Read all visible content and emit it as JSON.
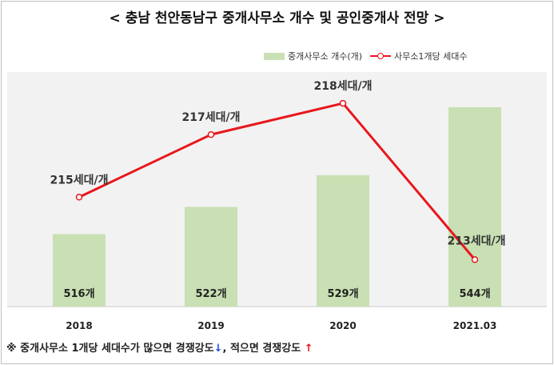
{
  "title": "< 충남 천안동남구 중개사무소 개수 및 공인중개사 전망 >",
  "legend": {
    "bar_label": "중개사무소 개수(개)",
    "line_label": "사무소1개당 세대수"
  },
  "footnote": {
    "text_part1": "※ 중개사무소 1개당 세대수가 많으면 경쟁강도",
    "arrow1": "↓",
    "text_part2": ", 적으면 경쟁강도 ",
    "arrow2": "↑"
  },
  "colors": {
    "bar": "#c9e0b4",
    "line": "#e8171c",
    "plot_bg": "#f2f2f2"
  },
  "chart_data": {
    "type": "bar",
    "categories": [
      "2018",
      "2019",
      "2020",
      "2021.03"
    ],
    "series": [
      {
        "name": "중개사무소 개수(개)",
        "type": "bar",
        "values": [
          516,
          522,
          529,
          544
        ],
        "data_labels": [
          "516개",
          "522개",
          "529개",
          "544개"
        ]
      },
      {
        "name": "사무소1개당 세대수",
        "type": "line",
        "values": [
          215,
          217,
          218,
          213
        ],
        "data_labels": [
          "215세대/개",
          "217세대/개",
          "218세대/개",
          "213세대/개"
        ]
      }
    ],
    "bar_axis_range": [
      500,
      550
    ],
    "line_axis_range": [
      211.5,
      219
    ],
    "grid": false,
    "legend_position": "top-right"
  }
}
